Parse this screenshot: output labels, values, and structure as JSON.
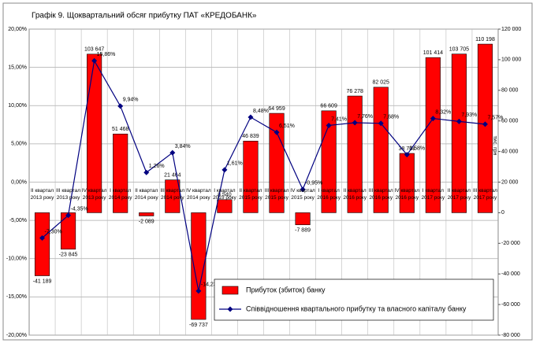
{
  "chart_data": {
    "type": "bar_line",
    "title": "Графік 9. Щоквартальний обсяг прибутку ПАТ «КРЕДОБАНК»",
    "y2label": "тис. грн",
    "categories": [
      "II квартал 2013 року",
      "III квартал 2013 року",
      "IV квартал 2013 року",
      "I квартал 2014 року",
      "II квартал 2014 року",
      "III квартал 2014 року",
      "IV квартал 2014 року",
      "I квартал 2015 року",
      "II квартал 2015 року",
      "III квартал 2015 року",
      "IV квартал 2015 року",
      "I квартал 2016 року",
      "II квартал 2016 року",
      "III квартал 2016 року",
      "IV квартал 2016 року",
      "I квартал 2017 року",
      "II квартал 2017 року",
      "III квартал 2017 року"
    ],
    "series": [
      {
        "name": "Прибуток (збиток)  банку",
        "color": "#ff0000",
        "axis": "y2",
        "kind": "bar",
        "values": [
          -41189,
          -23845,
          103647,
          51468,
          -2089,
          21464,
          -69737,
          8540,
          46839,
          64959,
          -7889,
          66609,
          76278,
          82025,
          38764,
          101414,
          103705,
          110198
        ],
        "value_labels": [
          "-41 189",
          "-23 845",
          "103 647",
          "51 468",
          "-2 089",
          "21 464",
          "-69 737",
          "8 540",
          "46 839",
          "64 959",
          "-7 889",
          "66 609",
          "76 278",
          "82 025",
          "38 764",
          "101 414",
          "103 705",
          "110 198"
        ]
      },
      {
        "name": "Співвідношення квартального прибутку та власного капіталу банку",
        "color": "#000080",
        "axis": "y",
        "kind": "line",
        "values": [
          -7.3,
          -4.35,
          15.86,
          9.94,
          1.26,
          3.84,
          -14.23,
          1.61,
          8.48,
          6.51,
          -0.95,
          7.41,
          7.76,
          7.68,
          3.58,
          8.32,
          7.93,
          7.57
        ],
        "value_labels": [
          "-7,30%",
          "-4,35%",
          "15,86%",
          "9,94%",
          "1,26%",
          "3,84%",
          "-14,23%",
          "1,61%",
          "8,48%",
          "6,51%",
          "-0,95%",
          "7,41%",
          "7,76%",
          "7,68%",
          "3,58%",
          "8,32%",
          "7,93%",
          "7,57%"
        ]
      }
    ],
    "ylim": [
      -20,
      20
    ],
    "yticks": [
      {
        "value": -20,
        "label": "-20,00%"
      },
      {
        "value": -15,
        "label": "-15,00%"
      },
      {
        "value": -10,
        "label": "-10,00%"
      },
      {
        "value": -5,
        "label": "-5,00%"
      },
      {
        "value": 0,
        "label": "0,00%"
      },
      {
        "value": 5,
        "label": "5,00%"
      },
      {
        "value": 10,
        "label": "10,00%"
      },
      {
        "value": 15,
        "label": "15,00%"
      },
      {
        "value": 20,
        "label": "20,00%"
      }
    ],
    "y2lim": [
      -80000,
      120000
    ],
    "y2ticks": [
      {
        "value": -80000,
        "label": "-80 000"
      },
      {
        "value": -60000,
        "label": "-60 000"
      },
      {
        "value": -40000,
        "label": "-40 000"
      },
      {
        "value": -20000,
        "label": "-20 000"
      },
      0,
      {
        "value": 20000,
        "label": "20 000"
      },
      {
        "value": 40000,
        "label": "40 000"
      },
      {
        "value": 60000,
        "label": "60 000"
      },
      {
        "value": 80000,
        "label": "80 000"
      },
      {
        "value": 100000,
        "label": "100 000"
      },
      {
        "value": 120000,
        "label": "120 000"
      }
    ],
    "grid": true,
    "legend": "lower right"
  }
}
